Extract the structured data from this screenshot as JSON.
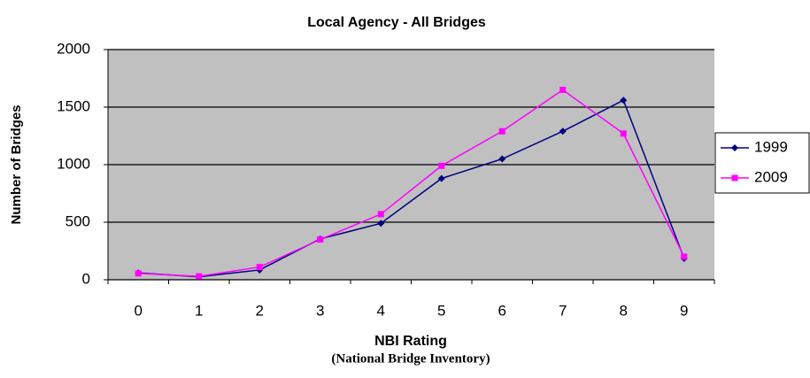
{
  "chart_data": {
    "type": "line",
    "title": "Local Agency -  All Bridges",
    "x_label": "NBI Rating",
    "y_label": "Number of Bridges",
    "caption": "(National Bridge Inventory)",
    "categories": [
      "0",
      "1",
      "2",
      "3",
      "4",
      "5",
      "6",
      "7",
      "8",
      "9"
    ],
    "series": [
      {
        "name": "1999",
        "color": "#000080",
        "marker": "diamond",
        "values": [
          60,
          25,
          85,
          355,
          490,
          880,
          1050,
          1290,
          1560,
          185
        ]
      },
      {
        "name": "2009",
        "color": "#ff00ff",
        "marker": "square",
        "values": [
          55,
          30,
          110,
          350,
          570,
          990,
          1290,
          1650,
          1270,
          200
        ]
      }
    ],
    "ylim": [
      0,
      2000
    ],
    "yticks": [
      0,
      500,
      1000,
      1500,
      2000
    ],
    "grid": true,
    "legend": "right"
  }
}
